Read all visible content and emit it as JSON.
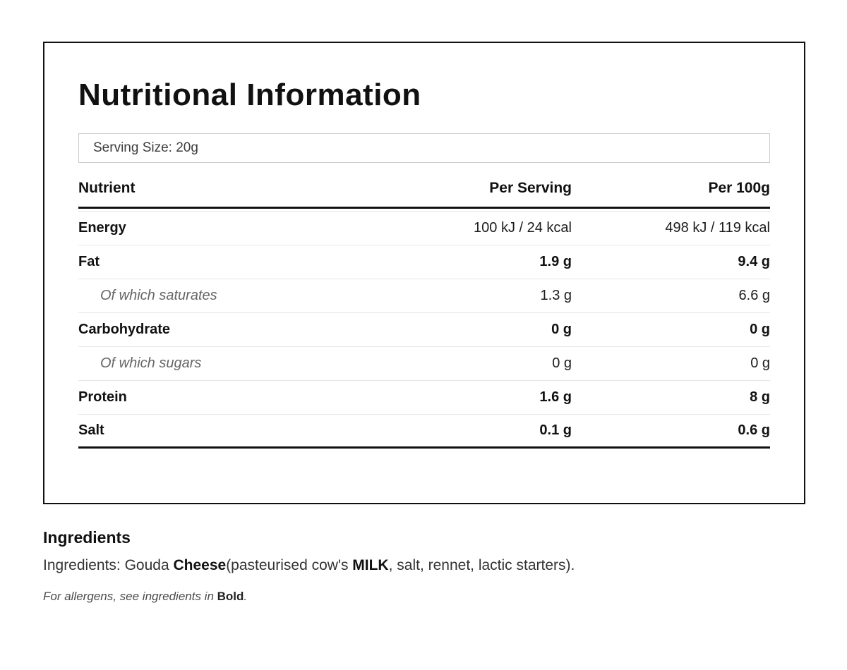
{
  "panel": {
    "title": "Nutritional Information",
    "serving_size_label": "Serving Size: 20g",
    "table": {
      "headers": [
        "Nutrient",
        "Per Serving",
        "Per 100g"
      ],
      "rows": [
        {
          "nutrient": "Energy",
          "per_serving": "100 kJ / 24 kcal",
          "per_100g": "498 kJ / 119 kcal",
          "indent": false,
          "value_bold": false
        },
        {
          "nutrient": "Fat",
          "per_serving": "1.9 g",
          "per_100g": "9.4 g",
          "indent": false,
          "value_bold": true
        },
        {
          "nutrient": "Of which saturates",
          "per_serving": "1.3 g",
          "per_100g": "6.6 g",
          "indent": true,
          "value_bold": false
        },
        {
          "nutrient": "Carbohydrate",
          "per_serving": "0 g",
          "per_100g": "0 g",
          "indent": false,
          "value_bold": true
        },
        {
          "nutrient": "Of which sugars",
          "per_serving": "0 g",
          "per_100g": "0 g",
          "indent": true,
          "value_bold": false
        },
        {
          "nutrient": "Protein",
          "per_serving": "1.6 g",
          "per_100g": "8 g",
          "indent": false,
          "value_bold": true
        },
        {
          "nutrient": "Salt",
          "per_serving": "0.1 g",
          "per_100g": "0.6 g",
          "indent": false,
          "value_bold": true
        }
      ]
    }
  },
  "ingredients": {
    "heading": "Ingredients",
    "line_parts": [
      {
        "text": "Ingredients: Gouda ",
        "bold": false
      },
      {
        "text": "Cheese",
        "bold": true
      },
      {
        "text": "(pasteurised cow's ",
        "bold": false
      },
      {
        "text": "MILK",
        "bold": true
      },
      {
        "text": ", salt, rennet, lactic starters).",
        "bold": false
      }
    ],
    "allergen_note_parts": [
      {
        "text": "For allergens, see ingredients in ",
        "bold": false
      },
      {
        "text": "Bold",
        "bold": true
      },
      {
        "text": ".",
        "bold": false
      }
    ]
  },
  "colors": {
    "border_strong": "#111111",
    "divider_light": "#e6e6e6",
    "serving_border": "#c9c9c9",
    "muted_text": "#666666",
    "body_text": "#333333"
  }
}
